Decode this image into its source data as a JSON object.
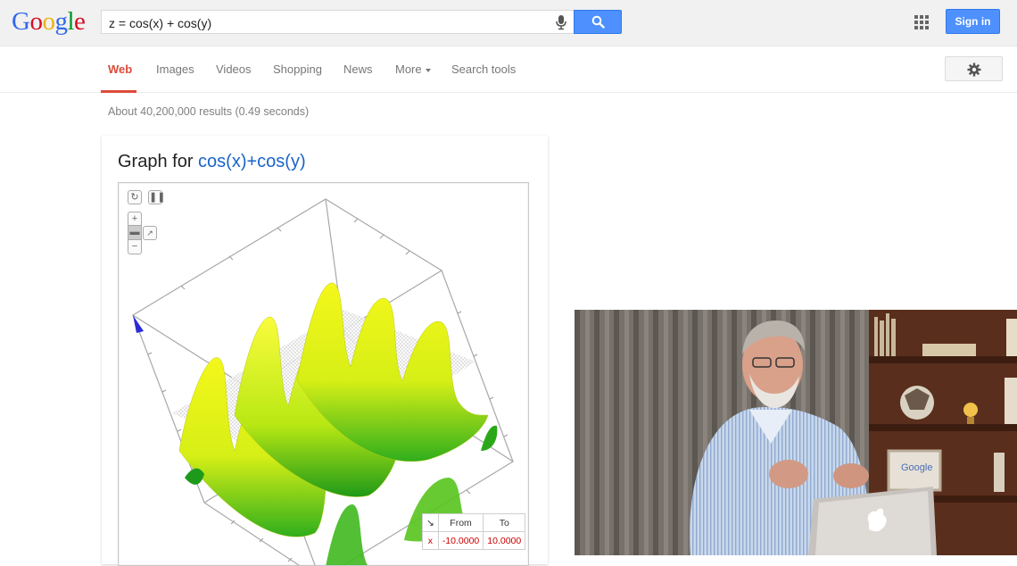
{
  "header": {
    "logo_letters": [
      {
        "ch": "G",
        "color": "#3369e8"
      },
      {
        "ch": "o",
        "color": "#d50f25"
      },
      {
        "ch": "o",
        "color": "#eeb211"
      },
      {
        "ch": "g",
        "color": "#3369e8"
      },
      {
        "ch": "l",
        "color": "#009925"
      },
      {
        "ch": "e",
        "color": "#d50f25"
      }
    ],
    "search_query": "z = cos(x) + cos(y)",
    "search_icon": "magnifier-icon",
    "mic_icon": "microphone-icon",
    "apps_icon": "grid-apps-icon",
    "signin_label": "Sign in",
    "accent_color": "#4d90fe"
  },
  "nav": {
    "tabs": [
      {
        "label": "Web",
        "active": true
      },
      {
        "label": "Images",
        "active": false
      },
      {
        "label": "Videos",
        "active": false
      },
      {
        "label": "Shopping",
        "active": false
      },
      {
        "label": "News",
        "active": false
      },
      {
        "label": "More",
        "active": false
      },
      {
        "label": "Search tools",
        "active": false
      }
    ],
    "settings_icon": "gear-icon"
  },
  "results": {
    "stats": "About 40,200,000 results (0.49 seconds)"
  },
  "graph_card": {
    "title_prefix": "Graph for ",
    "title_function": "cos(x)+cos(y)",
    "controls": {
      "reset_icon": "reset-icon",
      "pause_icon": "pause-icon",
      "zoom_in": "+",
      "zoom_out": "−",
      "camera_icon": "camera-icon",
      "axes_icon": "axes-icon"
    },
    "range_table": {
      "corner_icon": "collapse-arrow-icon",
      "from_label": "From",
      "to_label": "To",
      "x_label": "x",
      "x_from": "-10.0000",
      "x_to": "10.0000"
    }
  },
  "video": {
    "laptop_sticker": "Google"
  }
}
